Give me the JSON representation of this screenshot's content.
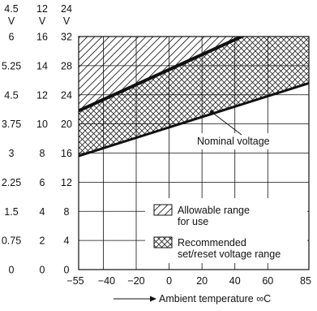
{
  "chart_data": {
    "type": "area",
    "xlabel": "Ambient temperature ∞C",
    "x_ticks": [
      "−55",
      "−40",
      "−20",
      "0",
      "20",
      "40",
      "60",
      "85"
    ],
    "x_tick_values": [
      -55,
      -40,
      -20,
      0,
      20,
      40,
      60,
      85
    ],
    "xlim": [
      -55,
      85
    ],
    "y_unit_headers": [
      {
        "value": "4.5",
        "unit": "V"
      },
      {
        "value": "12",
        "unit": "V"
      },
      {
        "value": "24",
        "unit": "V"
      }
    ],
    "y_ticks": [
      [
        "0",
        "0",
        "0"
      ],
      [
        "0.75",
        "2",
        "4"
      ],
      [
        "1.5",
        "4",
        "8"
      ],
      [
        "2.25",
        "6",
        "12"
      ],
      [
        "3",
        "8",
        "16"
      ],
      [
        "3.75",
        "10",
        "20"
      ],
      [
        "4.5",
        "12",
        "24"
      ],
      [
        "5.25",
        "14",
        "28"
      ],
      [
        "6",
        "16",
        "32"
      ]
    ],
    "ylim_24v": [
      0,
      32
    ],
    "allowable_range_lower_24v": [
      {
        "x": -55,
        "y": 21.8
      },
      {
        "x": 85,
        "y": 36.2
      }
    ],
    "recommended_range_lower_24v": [
      {
        "x": -55,
        "y": 15.6
      },
      {
        "x": 85,
        "y": 25.6
      }
    ],
    "annotation": "Nominal voltage",
    "legend": [
      {
        "label": "Allowable range\nfor use",
        "pattern": "diagonal-hatch"
      },
      {
        "label": "Recommended\nset/reset voltage range",
        "pattern": "cross-hatch"
      }
    ],
    "grid": true
  }
}
